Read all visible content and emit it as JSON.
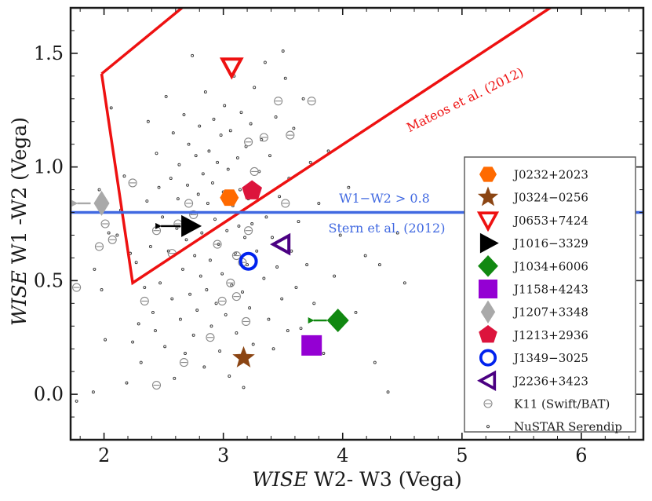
{
  "chart_data": {
    "type": "scatter",
    "title": "",
    "xlabel_italic": "WISE",
    "xlabel_rest": " W2- W3 (Vega)",
    "ylabel_italic": "WISE",
    "ylabel_rest": " W1 -W2 (Vega)",
    "xlim": [
      1.72,
      6.52
    ],
    "ylim": [
      -0.2,
      1.7
    ],
    "x_ticks": [
      2,
      3,
      4,
      5,
      6
    ],
    "y_ticks": [
      0.0,
      0.5,
      1.0,
      1.5
    ],
    "x_tick_labels": [
      "2",
      "3",
      "4",
      "5",
      "6"
    ],
    "y_tick_labels": [
      "0.0",
      "0.5",
      "1.0",
      "1.5"
    ],
    "colors": {
      "mateos": "#ee1111",
      "stern": "#4169e1",
      "k11": "#888888",
      "serendip": "#333333"
    },
    "mateos_wedge": {
      "label": "Mateos et al. (2012)",
      "polygon": [
        [
          1.98,
          1.41
        ],
        [
          2.24,
          0.49
        ],
        [
          6.52,
          1.97
        ],
        [
          3.28,
          1.97
        ],
        [
          1.98,
          1.41
        ]
      ]
    },
    "stern_cut": {
      "label_top": "W1−W2 > 0.8",
      "label_bottom": "Stern et al. (2012)",
      "y": 0.8
    },
    "highlighted_sources": [
      {
        "name": "J0232+2023",
        "x": 3.05,
        "y": 0.865,
        "shape": "hexagon",
        "color": "#ff6a00",
        "filled": true,
        "arrow": null
      },
      {
        "name": "J0324−0256",
        "x": 3.17,
        "y": 0.16,
        "shape": "star",
        "color": "#8b4513",
        "filled": true,
        "arrow": null
      },
      {
        "name": "J0653+7424",
        "x": 3.07,
        "y": 1.44,
        "shape": "triangle-down",
        "color": "#ee1111",
        "filled": false,
        "arrow": null
      },
      {
        "name": "J1016−3329",
        "x": 2.72,
        "y": 0.74,
        "shape": "triangle-right",
        "color": "#000000",
        "filled": true,
        "arrow": "left"
      },
      {
        "name": "J1034+6006",
        "x": 3.96,
        "y": 0.325,
        "shape": "diamond",
        "color": "#118811",
        "filled": true,
        "arrow": "left"
      },
      {
        "name": "J1158+4243",
        "x": 3.74,
        "y": 0.215,
        "shape": "square",
        "color": "#9400d3",
        "filled": true,
        "arrow": null
      },
      {
        "name": "J1207+3348",
        "x": 1.98,
        "y": 0.84,
        "shape": "thin-diamond",
        "color": "#a9a9a9",
        "filled": true,
        "arrow": "left"
      },
      {
        "name": "J1213+2936",
        "x": 3.24,
        "y": 0.895,
        "shape": "pentagon",
        "color": "#dc143c",
        "filled": true,
        "arrow": null
      },
      {
        "name": "J1349−3025",
        "x": 3.21,
        "y": 0.585,
        "shape": "circle",
        "color": "#0022ee",
        "filled": false,
        "arrow": null
      },
      {
        "name": "J2236+3423",
        "x": 3.49,
        "y": 0.66,
        "shape": "triangle-left",
        "color": "#4b0082",
        "filled": false,
        "arrow": null
      }
    ],
    "legend_extra": [
      {
        "name": "K11 (Swift/BAT)",
        "shape": "k11"
      },
      {
        "name": "NuSTAR Serendip",
        "shape": "dot"
      }
    ],
    "k11_points": [
      [
        1.77,
        0.47
      ],
      [
        2.01,
        0.75
      ],
      [
        1.96,
        0.65
      ],
      [
        2.07,
        0.68
      ],
      [
        2.24,
        0.93
      ],
      [
        2.34,
        0.41
      ],
      [
        2.44,
        0.72
      ],
      [
        2.44,
        0.04
      ],
      [
        2.57,
        0.62
      ],
      [
        2.62,
        0.75
      ],
      [
        2.67,
        0.14
      ],
      [
        2.71,
        0.84
      ],
      [
        2.75,
        0.79
      ],
      [
        2.89,
        0.25
      ],
      [
        2.95,
        0.66
      ],
      [
        2.99,
        0.41
      ],
      [
        3.06,
        0.49
      ],
      [
        3.11,
        0.43
      ],
      [
        3.16,
        0.58
      ],
      [
        3.21,
        0.72
      ],
      [
        3.21,
        1.11
      ],
      [
        3.26,
        0.98
      ],
      [
        3.34,
        1.13
      ],
      [
        3.46,
        1.29
      ],
      [
        3.52,
        0.84
      ],
      [
        3.56,
        1.14
      ],
      [
        3.71,
        0.24
      ],
      [
        3.74,
        1.29
      ],
      [
        3.19,
        0.32
      ],
      [
        3.11,
        0.61
      ]
    ],
    "serendip_points": [
      [
        1.77,
        -0.03
      ],
      [
        1.91,
        0.01
      ],
      [
        1.92,
        0.55
      ],
      [
        1.96,
        0.9
      ],
      [
        1.98,
        0.46
      ],
      [
        2.01,
        0.24
      ],
      [
        2.04,
        0.71
      ],
      [
        2.06,
        1.26
      ],
      [
        2.11,
        0.7
      ],
      [
        2.14,
        0.81
      ],
      [
        2.17,
        0.96
      ],
      [
        2.19,
        0.05
      ],
      [
        2.22,
        0.62
      ],
      [
        2.24,
        0.23
      ],
      [
        2.27,
        0.58
      ],
      [
        2.29,
        0.31
      ],
      [
        2.31,
        0.14
      ],
      [
        2.34,
        0.47
      ],
      [
        2.36,
        0.85
      ],
      [
        2.37,
        1.2
      ],
      [
        2.39,
        0.65
      ],
      [
        2.41,
        0.36
      ],
      [
        2.43,
        0.28
      ],
      [
        2.44,
        1.06
      ],
      [
        2.46,
        0.91
      ],
      [
        2.47,
        0.49
      ],
      [
        2.49,
        0.78
      ],
      [
        2.51,
        0.21
      ],
      [
        2.52,
        1.31
      ],
      [
        2.54,
        0.63
      ],
      [
        2.56,
        0.95
      ],
      [
        2.57,
        0.42
      ],
      [
        2.58,
        1.15
      ],
      [
        2.59,
        0.07
      ],
      [
        2.61,
        0.73
      ],
      [
        2.62,
        0.86
      ],
      [
        2.63,
        1.01
      ],
      [
        2.64,
        0.33
      ],
      [
        2.66,
        0.55
      ],
      [
        2.67,
        1.23
      ],
      [
        2.68,
        0.18
      ],
      [
        2.69,
        0.68
      ],
      [
        2.7,
        0.92
      ],
      [
        2.71,
        1.1
      ],
      [
        2.72,
        0.44
      ],
      [
        2.73,
        0.8
      ],
      [
        2.74,
        1.49
      ],
      [
        2.75,
        0.26
      ],
      [
        2.76,
        0.61
      ],
      [
        2.77,
        1.05
      ],
      [
        2.78,
        0.37
      ],
      [
        2.79,
        0.88
      ],
      [
        2.8,
        1.18
      ],
      [
        2.81,
        0.52
      ],
      [
        2.82,
        0.71
      ],
      [
        2.83,
        0.97
      ],
      [
        2.84,
        0.12
      ],
      [
        2.85,
        1.33
      ],
      [
        2.86,
        0.46
      ],
      [
        2.87,
        0.84
      ],
      [
        2.88,
        1.07
      ],
      [
        2.89,
        0.59
      ],
      [
        2.9,
        0.3
      ],
      [
        2.91,
        0.93
      ],
      [
        2.92,
        1.21
      ],
      [
        2.93,
        0.77
      ],
      [
        2.94,
        0.4
      ],
      [
        2.95,
        1.02
      ],
      [
        2.96,
        0.66
      ],
      [
        2.97,
        0.19
      ],
      [
        2.98,
        1.14
      ],
      [
        2.99,
        0.53
      ],
      [
        3.0,
        0.89
      ],
      [
        3.01,
        1.27
      ],
      [
        3.02,
        0.35
      ],
      [
        3.03,
        0.72
      ],
      [
        3.04,
        0.99
      ],
      [
        3.05,
        0.08
      ],
      [
        3.06,
        1.16
      ],
      [
        3.07,
        0.48
      ],
      [
        3.08,
        0.83
      ],
      [
        3.09,
        1.4
      ],
      [
        3.1,
        0.62
      ],
      [
        3.11,
        0.27
      ],
      [
        3.12,
        1.04
      ],
      [
        3.13,
        0.74
      ],
      [
        3.14,
        0.9
      ],
      [
        3.15,
        1.24
      ],
      [
        3.16,
        0.45
      ],
      [
        3.17,
        0.03
      ],
      [
        3.18,
        0.69
      ],
      [
        3.19,
        1.09
      ],
      [
        3.2,
        0.57
      ],
      [
        3.21,
        0.86
      ],
      [
        3.22,
        0.38
      ],
      [
        3.23,
        1.19
      ],
      [
        3.24,
        0.75
      ],
      [
        3.25,
        0.22
      ],
      [
        3.26,
        1.35
      ],
      [
        3.28,
        0.63
      ],
      [
        3.3,
        0.98
      ],
      [
        3.32,
        1.12
      ],
      [
        3.34,
        0.51
      ],
      [
        3.35,
        1.46
      ],
      [
        3.36,
        0.78
      ],
      [
        3.38,
        0.33
      ],
      [
        3.39,
        1.05
      ],
      [
        3.41,
        0.69
      ],
      [
        3.42,
        0.2
      ],
      [
        3.44,
        1.22
      ],
      [
        3.45,
        0.56
      ],
      [
        3.47,
        0.87
      ],
      [
        3.49,
        0.42
      ],
      [
        3.5,
        1.51
      ],
      [
        3.52,
        1.39
      ],
      [
        3.54,
        0.28
      ],
      [
        3.55,
        0.95
      ],
      [
        3.57,
        0.63
      ],
      [
        3.59,
        1.17
      ],
      [
        3.61,
        0.47
      ],
      [
        3.63,
        0.76
      ],
      [
        3.65,
        0.29
      ],
      [
        3.67,
        1.3
      ],
      [
        3.7,
        0.57
      ],
      [
        3.73,
        1.02
      ],
      [
        3.76,
        0.4
      ],
      [
        3.8,
        0.84
      ],
      [
        3.84,
        0.18
      ],
      [
        3.88,
        1.07
      ],
      [
        3.93,
        0.52
      ],
      [
        3.98,
        0.7
      ],
      [
        4.05,
        0.91
      ],
      [
        4.11,
        0.36
      ],
      [
        4.19,
        0.61
      ],
      [
        4.27,
        0.14
      ],
      [
        4.31,
        0.57
      ],
      [
        4.38,
        0.01
      ],
      [
        4.46,
        0.71
      ],
      [
        4.52,
        0.49
      ]
    ]
  }
}
